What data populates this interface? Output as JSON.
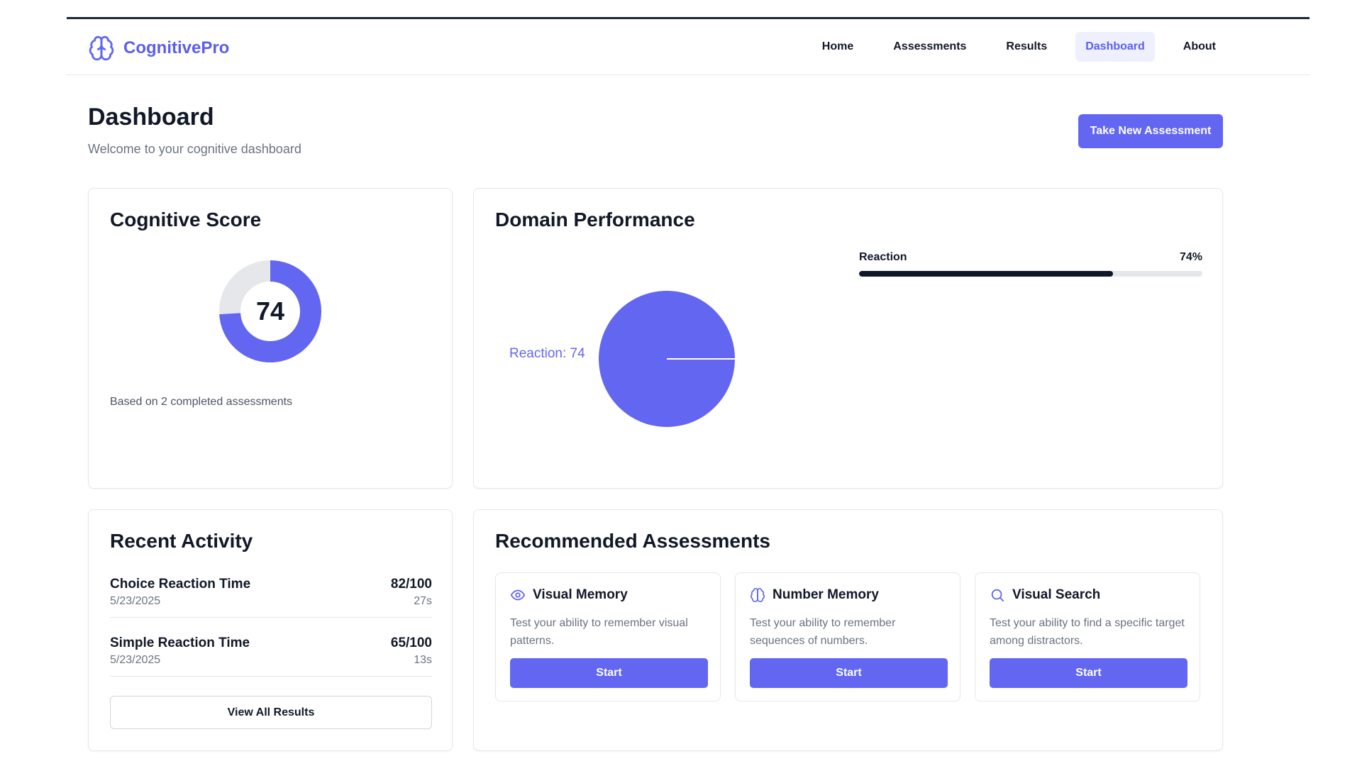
{
  "colors": {
    "accent": "#6366f1",
    "brand": "#5b5ef0",
    "bar_fill": "#0f172a",
    "track": "#e5e7eb"
  },
  "brand": {
    "name": "CognitivePro",
    "icon": "brain-icon"
  },
  "nav": {
    "home": "Home",
    "assessments": "Assessments",
    "results": "Results",
    "dashboard": "Dashboard",
    "about": "About",
    "active": "Dashboard"
  },
  "header": {
    "title": "Dashboard",
    "subtitle": "Welcome to your cognitive dashboard",
    "cta": "Take New Assessment"
  },
  "score": {
    "title": "Cognitive Score",
    "value": "74",
    "fraction": 0.74,
    "note": "Based on 2 completed assessments"
  },
  "domain": {
    "title": "Domain Performance",
    "pie_label": "Reaction: 74",
    "bars": [
      {
        "label": "Reaction",
        "value_text": "74%",
        "fraction": 0.74
      }
    ]
  },
  "chart_data": {
    "type": "pie",
    "categories": [
      "Reaction"
    ],
    "values": [
      74
    ],
    "labels": [
      "Reaction: 74"
    ]
  },
  "activity": {
    "title": "Recent Activity",
    "items": [
      {
        "name": "Choice Reaction Time",
        "date": "5/23/2025",
        "score": "82/100",
        "time": "27s"
      },
      {
        "name": "Simple Reaction Time",
        "date": "5/23/2025",
        "score": "65/100",
        "time": "13s"
      }
    ],
    "view_all": "View All Results"
  },
  "recommended": {
    "title": "Recommended Assessments",
    "items": [
      {
        "name": "Visual Memory",
        "icon": "eye-icon",
        "desc": "Test your ability to remember visual patterns.",
        "button": "Start"
      },
      {
        "name": "Number Memory",
        "icon": "brain-icon",
        "desc": "Test your ability to remember sequences of numbers.",
        "button": "Start"
      },
      {
        "name": "Visual Search",
        "icon": "search-icon",
        "desc": "Test your ability to find a specific target among distractors.",
        "button": "Start"
      }
    ]
  }
}
